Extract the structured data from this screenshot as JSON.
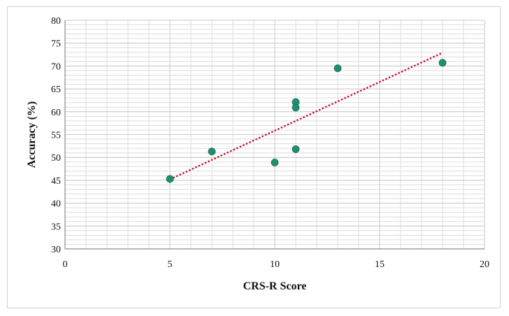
{
  "chart_data": {
    "type": "scatter",
    "title": "",
    "xlabel": "CRS-R Score",
    "ylabel": "Accuracy (%)",
    "xlim": [
      0,
      20
    ],
    "ylim": [
      30,
      80
    ],
    "x_ticks": [
      0,
      5,
      10,
      15,
      20
    ],
    "y_ticks": [
      30,
      35,
      40,
      45,
      50,
      55,
      60,
      65,
      70,
      75,
      80
    ],
    "grid": true,
    "points": [
      {
        "x": 5,
        "y": 45.3
      },
      {
        "x": 7,
        "y": 51.3
      },
      {
        "x": 10,
        "y": 48.9
      },
      {
        "x": 11,
        "y": 62.1
      },
      {
        "x": 11,
        "y": 60.9
      },
      {
        "x": 11,
        "y": 51.8
      },
      {
        "x": 13,
        "y": 69.5
      },
      {
        "x": 18,
        "y": 70.7
      }
    ],
    "trendline": {
      "type": "linear",
      "from": {
        "x": 5,
        "y": 45.2
      },
      "to": {
        "x": 18,
        "y": 72.9
      }
    },
    "colors": {
      "points": "#1f8f72",
      "trendline": "#c8102e",
      "grid": "#dddddd"
    }
  }
}
